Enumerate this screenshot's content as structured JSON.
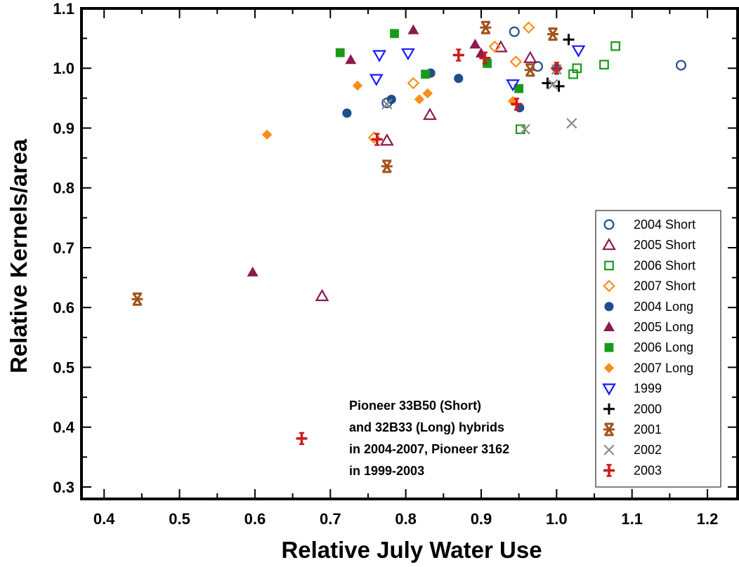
{
  "chart_data": {
    "type": "scatter",
    "title": "",
    "xlabel": "Relative July  Water Use",
    "ylabel": "Relative Kernels/area",
    "xlim": [
      0.37,
      1.24
    ],
    "ylim": [
      0.28,
      1.1
    ],
    "xticks": [
      "0.4",
      "0.5",
      "0.6",
      "0.7",
      "0.8",
      "0.9",
      "1.0",
      "1.1",
      "1.2"
    ],
    "yticks": [
      "0.3",
      "0.4",
      "0.5",
      "0.6",
      "0.7",
      "0.8",
      "0.9",
      "1.0",
      "1.1"
    ],
    "grid": false,
    "legend_position": "right",
    "annotation": [
      "Pioneer 33B50 (Short)",
      "and 32B33 (Long) hybrids",
      "in 2004-2007, Pioneer 3162",
      "in 1999-2003"
    ],
    "series": [
      {
        "name": "2004 Short",
        "marker": "circle-open",
        "color": "#1f4e8c",
        "points": [
          [
            0.944,
            1.061
          ],
          [
            0.975,
            1.003
          ],
          [
            1.165,
            1.005
          ],
          [
            0.775,
            0.942
          ]
        ]
      },
      {
        "name": "2005 Short",
        "marker": "triangle-up-open",
        "color": "#8b1a4f",
        "points": [
          [
            0.926,
            1.035
          ],
          [
            0.965,
            1.017
          ],
          [
            0.832,
            0.922
          ],
          [
            0.775,
            0.879
          ],
          [
            0.689,
            0.619
          ]
        ]
      },
      {
        "name": "2006 Short",
        "marker": "square-open",
        "color": "#1a9a1a",
        "points": [
          [
            1.078,
            1.037
          ],
          [
            1.063,
            1.006
          ],
          [
            1.027,
            1.0
          ],
          [
            1.022,
            0.99
          ],
          [
            0.952,
            0.898
          ]
        ]
      },
      {
        "name": "2007 Short",
        "marker": "diamond-open",
        "color": "#ff8c1a",
        "points": [
          [
            0.963,
            1.068
          ],
          [
            0.918,
            1.036
          ],
          [
            0.946,
            1.011
          ],
          [
            0.81,
            0.975
          ],
          [
            0.758,
            0.884
          ]
        ]
      },
      {
        "name": "2004 Long",
        "marker": "circle-filled",
        "color": "#1f4e8c",
        "points": [
          [
            0.833,
            0.992
          ],
          [
            0.87,
            0.983
          ],
          [
            0.781,
            0.948
          ],
          [
            0.722,
            0.925
          ],
          [
            0.951,
            0.934
          ],
          [
            1.0,
            1.0
          ]
        ]
      },
      {
        "name": "2005 Long",
        "marker": "triangle-up-filled",
        "color": "#8b1a4f",
        "points": [
          [
            0.81,
            1.064
          ],
          [
            0.892,
            1.04
          ],
          [
            0.9,
            1.025
          ],
          [
            0.727,
            1.014
          ],
          [
            0.597,
            0.659
          ]
        ]
      },
      {
        "name": "2006 Long",
        "marker": "square-filled",
        "color": "#1a9a1a",
        "points": [
          [
            0.785,
            1.058
          ],
          [
            0.713,
            1.026
          ],
          [
            0.826,
            0.99
          ],
          [
            0.908,
            1.008
          ],
          [
            0.95,
            0.966
          ]
        ]
      },
      {
        "name": "2007 Long",
        "marker": "diamond-filled",
        "color": "#ff8c1a",
        "points": [
          [
            0.736,
            0.971
          ],
          [
            0.829,
            0.958
          ],
          [
            0.818,
            0.948
          ],
          [
            0.942,
            0.945
          ],
          [
            0.616,
            0.889
          ]
        ]
      },
      {
        "name": "1999",
        "marker": "triangle-down-open",
        "color": "#1a1aff",
        "points": [
          [
            0.765,
            1.022
          ],
          [
            0.803,
            1.025
          ],
          [
            1.029,
            1.03
          ],
          [
            0.761,
            0.982
          ],
          [
            0.942,
            0.973
          ]
        ]
      },
      {
        "name": "2000",
        "marker": "plus",
        "color": "#000000",
        "points": [
          [
            1.016,
            1.048
          ],
          [
            0.988,
            0.975
          ],
          [
            1.003,
            0.97
          ]
        ]
      },
      {
        "name": "2001",
        "marker": "bowtie",
        "color": "#a0521a",
        "points": [
          [
            0.906,
            1.068
          ],
          [
            0.995,
            1.057
          ],
          [
            0.965,
            0.997
          ],
          [
            0.775,
            0.836
          ],
          [
            0.444,
            0.614
          ]
        ]
      },
      {
        "name": "2002",
        "marker": "x",
        "color": "#888888",
        "points": [
          [
            0.775,
            0.94
          ],
          [
            1.0,
            0.998
          ],
          [
            0.995,
            0.973
          ],
          [
            0.958,
            0.898
          ],
          [
            1.02,
            0.908
          ]
        ]
      },
      {
        "name": "2003",
        "marker": "plus-thick",
        "color": "#cc1a1a",
        "points": [
          [
            0.87,
            1.022
          ],
          [
            0.905,
            1.017
          ],
          [
            0.947,
            0.94
          ],
          [
            1.0,
            1.0
          ],
          [
            0.762,
            0.881
          ],
          [
            0.662,
            0.381
          ]
        ]
      }
    ]
  }
}
